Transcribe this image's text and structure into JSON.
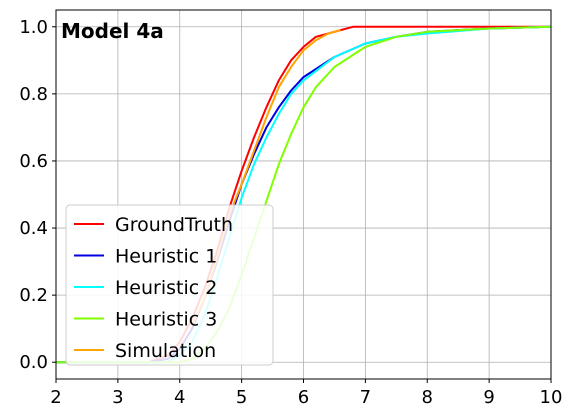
{
  "chart_data": {
    "type": "line",
    "title": "Model 4a",
    "xlabel": "",
    "ylabel": "",
    "xlim": [
      2,
      10
    ],
    "ylim": [
      -0.05,
      1.05
    ],
    "x_ticks": [
      "2",
      "3",
      "4",
      "5",
      "6",
      "7",
      "8",
      "9",
      "10"
    ],
    "y_ticks": [
      "0.0",
      "0.2",
      "0.4",
      "0.6",
      "0.8",
      "1.0"
    ],
    "grid": true,
    "legend_position": "lower-left",
    "series": [
      {
        "name": "GroundTruth",
        "color": "#ff0000",
        "x": [
          2.0,
          3.0,
          3.5,
          3.8,
          4.0,
          4.2,
          4.4,
          4.6,
          4.8,
          5.0,
          5.2,
          5.4,
          5.6,
          5.8,
          6.0,
          6.2,
          6.4,
          6.6,
          6.8,
          7.0,
          7.5,
          8.0,
          10.0
        ],
        "y": [
          0.0,
          0.0,
          0.0,
          0.02,
          0.06,
          0.13,
          0.22,
          0.33,
          0.46,
          0.57,
          0.67,
          0.76,
          0.84,
          0.9,
          0.94,
          0.97,
          0.98,
          0.99,
          1.0,
          1.0,
          1.0,
          1.0,
          1.0
        ]
      },
      {
        "name": "Heuristic 1",
        "color": "#0000e0",
        "x": [
          2.0,
          3.0,
          3.5,
          3.8,
          4.0,
          4.2,
          4.4,
          4.6,
          4.8,
          5.0,
          5.2,
          5.4,
          5.6,
          5.8,
          6.0,
          6.5,
          7.0,
          7.5,
          8.0,
          8.5,
          9.0,
          10.0
        ],
        "y": [
          0.0,
          0.0,
          0.0,
          0.01,
          0.04,
          0.1,
          0.19,
          0.3,
          0.42,
          0.53,
          0.62,
          0.7,
          0.76,
          0.81,
          0.85,
          0.91,
          0.95,
          0.97,
          0.985,
          0.99,
          0.995,
          1.0
        ]
      },
      {
        "name": "Heuristic 2",
        "color": "#00ffff",
        "x": [
          2.0,
          3.0,
          3.8,
          4.0,
          4.2,
          4.4,
          4.6,
          4.8,
          5.0,
          5.2,
          5.4,
          5.6,
          5.8,
          6.0,
          6.5,
          7.0,
          7.5,
          8.0,
          9.0,
          10.0
        ],
        "y": [
          0.0,
          0.0,
          0.0,
          0.02,
          0.06,
          0.14,
          0.25,
          0.37,
          0.49,
          0.59,
          0.67,
          0.74,
          0.8,
          0.84,
          0.91,
          0.95,
          0.97,
          0.98,
          0.995,
          1.0
        ]
      },
      {
        "name": "Heuristic 3",
        "color": "#80ff00",
        "x": [
          2.0,
          3.0,
          4.0,
          4.2,
          4.4,
          4.6,
          4.8,
          5.0,
          5.2,
          5.4,
          5.6,
          5.8,
          6.0,
          6.2,
          6.5,
          7.0,
          7.5,
          8.0,
          9.0,
          10.0
        ],
        "y": [
          0.0,
          0.0,
          0.0,
          0.01,
          0.04,
          0.09,
          0.16,
          0.26,
          0.37,
          0.48,
          0.59,
          0.68,
          0.76,
          0.82,
          0.88,
          0.94,
          0.97,
          0.985,
          0.995,
          1.0
        ]
      },
      {
        "name": "Simulation",
        "color": "#ffa500",
        "x": [
          4.2,
          4.4,
          4.6,
          4.8,
          5.0,
          5.2,
          5.4,
          5.6,
          5.8,
          6.0,
          6.2,
          6.4,
          6.6
        ],
        "y": [
          0.11,
          0.19,
          0.31,
          0.44,
          0.53,
          0.63,
          0.73,
          0.82,
          0.88,
          0.93,
          0.96,
          0.98,
          0.99
        ]
      }
    ]
  }
}
